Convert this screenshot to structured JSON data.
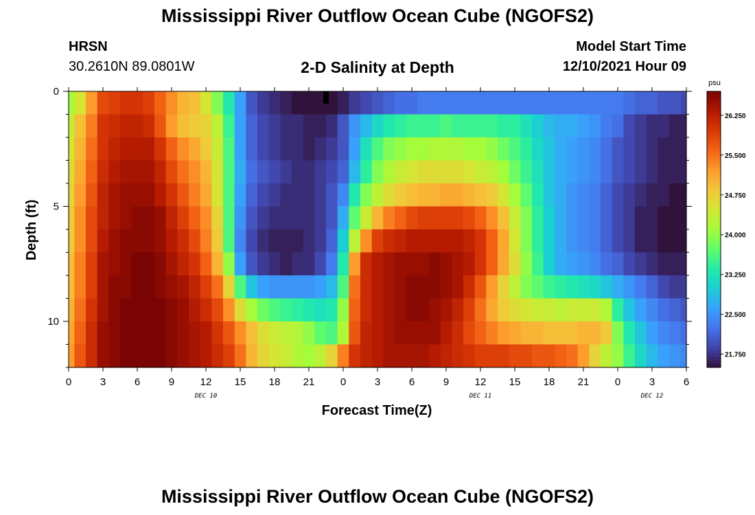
{
  "header": {
    "title": "Mississippi River Outflow Ocean Cube (NGOFS2)",
    "station_name": "HRSN",
    "station_coords": "30.2610N  89.0801W",
    "subtitle": "2-D Salinity at Depth",
    "model_start_label": "Model Start Time",
    "model_start_value": "12/10/2021 Hour 09"
  },
  "footer": {
    "title": "Mississippi River Outflow Ocean Cube (NGOFS2)"
  },
  "colors": {
    "scale": [
      "#30123b",
      "#4145ab",
      "#4675ed",
      "#39a2fc",
      "#1bcfd4",
      "#24eca6",
      "#61fc6c",
      "#a4fc3b",
      "#d1e834",
      "#f3c63a",
      "#fe9b2d",
      "#f36315",
      "#d93806",
      "#b11901",
      "#7a0403"
    ]
  },
  "chart_data": {
    "type": "heatmap",
    "title": "2-D Salinity at Depth",
    "xlabel": "Forecast Time(Z)",
    "ylabel": "Depth (ft)",
    "x_hours": [
      0,
      1,
      2,
      3,
      4,
      5,
      6,
      7,
      8,
      9,
      10,
      11,
      12,
      13,
      14,
      15,
      16,
      17,
      18,
      19,
      20,
      21,
      22,
      23,
      24,
      25,
      26,
      27,
      28,
      29,
      30,
      31,
      32,
      33,
      34,
      35,
      36,
      37,
      38,
      39,
      40,
      41,
      42,
      43,
      44,
      45,
      46,
      47,
      48,
      49,
      50,
      51,
      52,
      53,
      54
    ],
    "xlim": [
      0,
      54
    ],
    "ylim": [
      0,
      12
    ],
    "x_tick_labels": [
      "0",
      "3",
      "6",
      "9",
      "12",
      "15",
      "18",
      "21",
      "0",
      "3",
      "6",
      "9",
      "12",
      "15",
      "18",
      "21",
      "0",
      "3",
      "6"
    ],
    "y_tick_labels": [
      "0",
      "5",
      "10"
    ],
    "y_tick_values": [
      0,
      5,
      10
    ],
    "day_labels": [
      {
        "text": "DEC 10",
        "hour": 12
      },
      {
        "text": "DEC 11",
        "hour": 36
      },
      {
        "text": "DEC 12",
        "hour": 51
      }
    ],
    "now_marker_hour": 22.5,
    "layers": 12,
    "colorbar": {
      "unit": "psu",
      "min": 21.5,
      "max": 26.7,
      "labels": [
        "26.250",
        "25.500",
        "24.750",
        "24.000",
        "23.250",
        "22.500",
        "21.750"
      ],
      "label_values": [
        26.25,
        25.5,
        24.75,
        24.0,
        23.25,
        22.5,
        21.75
      ]
    },
    "salinity_psu": [
      [
        24.1,
        24.5,
        25.2,
        25.8,
        25.9,
        26.0,
        26.0,
        25.9,
        25.6,
        25.3,
        25.0,
        24.9,
        24.5,
        23.9,
        23.3,
        22.6,
        22.0,
        21.8,
        21.7,
        21.6,
        21.5,
        21.5,
        21.5,
        21.5,
        21.6,
        21.8,
        21.9,
        22.0,
        22.1,
        22.2,
        22.2,
        22.3,
        22.3,
        22.3,
        22.3,
        22.3,
        22.3,
        22.3,
        22.3,
        22.3,
        22.3,
        22.3,
        22.3,
        22.3,
        22.3,
        22.3,
        22.3,
        22.3,
        22.3,
        22.2,
        22.1,
        22.1,
        22.0,
        22.0,
        21.9
      ],
      [
        24.4,
        24.9,
        25.4,
        26.0,
        26.1,
        26.2,
        26.2,
        26.1,
        25.7,
        25.2,
        24.9,
        24.8,
        24.7,
        24.3,
        23.5,
        22.6,
        22.1,
        21.9,
        21.8,
        21.7,
        21.7,
        21.6,
        21.6,
        21.7,
        22.0,
        22.5,
        22.8,
        23.1,
        23.3,
        23.4,
        23.5,
        23.5,
        23.5,
        23.6,
        23.5,
        23.5,
        23.5,
        23.5,
        23.4,
        23.4,
        23.2,
        23.0,
        22.8,
        22.7,
        22.7,
        22.6,
        22.5,
        22.3,
        22.2,
        21.9,
        21.8,
        21.7,
        21.7,
        21.6,
        21.6
      ],
      [
        24.5,
        25.0,
        25.5,
        26.0,
        26.2,
        26.3,
        26.3,
        26.3,
        26.0,
        25.6,
        25.3,
        25.1,
        24.8,
        24.4,
        23.6,
        22.6,
        22.1,
        21.9,
        21.8,
        21.7,
        21.7,
        21.6,
        21.7,
        21.8,
        22.0,
        22.6,
        23.2,
        23.6,
        23.9,
        24.0,
        24.1,
        24.1,
        24.2,
        24.2,
        24.2,
        24.1,
        24.1,
        24.0,
        23.8,
        23.6,
        23.4,
        23.1,
        22.9,
        22.7,
        22.6,
        22.5,
        22.4,
        22.2,
        22.0,
        21.9,
        21.8,
        21.7,
        21.6,
        21.6,
        21.6
      ],
      [
        24.6,
        25.1,
        25.6,
        26.1,
        26.3,
        26.4,
        26.4,
        26.4,
        26.2,
        25.8,
        25.5,
        25.3,
        25.0,
        24.5,
        23.6,
        22.7,
        22.2,
        22.0,
        21.9,
        21.8,
        21.7,
        21.7,
        21.8,
        21.9,
        22.1,
        22.8,
        23.4,
        23.9,
        24.2,
        24.4,
        24.5,
        24.6,
        24.6,
        24.6,
        24.6,
        24.5,
        24.4,
        24.3,
        24.1,
        23.8,
        23.5,
        23.2,
        22.9,
        22.7,
        22.6,
        22.5,
        22.4,
        22.2,
        22.0,
        21.9,
        21.8,
        21.7,
        21.6,
        21.6,
        21.6
      ],
      [
        24.7,
        25.2,
        25.7,
        26.2,
        26.4,
        26.5,
        26.5,
        26.5,
        26.3,
        26.0,
        25.7,
        25.4,
        25.1,
        24.5,
        23.6,
        22.6,
        22.1,
        21.9,
        21.8,
        21.7,
        21.7,
        21.7,
        21.8,
        22.0,
        22.4,
        23.3,
        23.9,
        24.3,
        24.6,
        24.8,
        24.9,
        25.0,
        25.0,
        25.1,
        25.1,
        25.0,
        24.9,
        24.8,
        24.5,
        24.1,
        23.7,
        23.3,
        22.9,
        22.7,
        22.5,
        22.4,
        22.3,
        22.1,
        21.9,
        21.8,
        21.7,
        21.6,
        21.6,
        21.5,
        21.5
      ],
      [
        24.8,
        25.3,
        25.8,
        26.2,
        26.4,
        26.5,
        26.6,
        26.6,
        26.5,
        26.2,
        25.9,
        25.6,
        25.3,
        24.7,
        23.6,
        22.5,
        22.0,
        21.8,
        21.7,
        21.7,
        21.7,
        21.7,
        21.8,
        22.0,
        22.7,
        23.7,
        24.4,
        25.0,
        25.4,
        25.6,
        25.8,
        25.9,
        25.9,
        25.9,
        25.9,
        25.8,
        25.6,
        25.3,
        24.9,
        24.4,
        23.9,
        23.4,
        23.0,
        22.7,
        22.5,
        22.4,
        22.3,
        22.1,
        21.9,
        21.8,
        21.6,
        21.6,
        21.5,
        21.5,
        21.5
      ],
      [
        24.8,
        25.3,
        25.8,
        26.3,
        26.5,
        26.6,
        26.6,
        26.6,
        26.5,
        26.3,
        26.1,
        25.8,
        25.4,
        24.8,
        23.6,
        22.4,
        21.9,
        21.7,
        21.6,
        21.6,
        21.6,
        21.7,
        21.8,
        22.1,
        23.0,
        24.3,
        25.3,
        25.9,
        26.1,
        26.2,
        26.3,
        26.3,
        26.3,
        26.3,
        26.3,
        26.2,
        26.0,
        25.6,
        25.1,
        24.5,
        23.9,
        23.4,
        23.0,
        22.7,
        22.5,
        22.4,
        22.3,
        22.1,
        21.9,
        21.8,
        21.6,
        21.6,
        21.5,
        21.5,
        21.5
      ],
      [
        24.9,
        25.4,
        25.9,
        26.4,
        26.5,
        26.6,
        26.7,
        26.7,
        26.6,
        26.4,
        26.2,
        26.0,
        25.6,
        25.0,
        24.0,
        22.6,
        22.0,
        21.8,
        21.7,
        21.6,
        21.7,
        21.7,
        21.9,
        22.3,
        23.3,
        25.2,
        26.1,
        26.3,
        26.4,
        26.5,
        26.5,
        26.5,
        26.6,
        26.5,
        26.4,
        26.3,
        26.0,
        25.6,
        25.1,
        24.6,
        24.0,
        23.5,
        23.0,
        22.7,
        22.6,
        22.5,
        22.4,
        22.2,
        22.1,
        21.9,
        21.8,
        21.7,
        21.6,
        21.6,
        21.6
      ],
      [
        24.9,
        25.4,
        25.9,
        26.4,
        26.6,
        26.6,
        26.7,
        26.7,
        26.6,
        26.5,
        26.4,
        26.2,
        25.9,
        25.5,
        24.7,
        23.6,
        22.9,
        22.6,
        22.5,
        22.5,
        22.5,
        22.5,
        22.6,
        22.8,
        23.6,
        25.5,
        26.1,
        26.3,
        26.4,
        26.5,
        26.6,
        26.6,
        26.6,
        26.5,
        26.4,
        26.1,
        25.7,
        25.2,
        24.7,
        24.3,
        23.9,
        23.7,
        23.5,
        23.4,
        23.3,
        23.2,
        23.1,
        22.9,
        22.7,
        22.5,
        22.3,
        22.1,
        21.9,
        21.8,
        21.8
      ],
      [
        25.0,
        25.5,
        26.0,
        26.4,
        26.6,
        26.7,
        26.7,
        26.7,
        26.7,
        26.6,
        26.5,
        26.3,
        26.1,
        25.8,
        25.3,
        24.6,
        24.1,
        23.8,
        23.6,
        23.5,
        23.4,
        23.3,
        23.2,
        23.3,
        24.0,
        25.6,
        26.1,
        26.3,
        26.4,
        26.5,
        26.6,
        26.6,
        26.5,
        26.4,
        26.2,
        25.9,
        25.5,
        25.1,
        24.8,
        24.6,
        24.5,
        24.4,
        24.4,
        24.3,
        24.4,
        24.4,
        24.4,
        24.2,
        23.4,
        22.9,
        22.6,
        22.4,
        22.2,
        22.1,
        22.0
      ],
      [
        25.1,
        25.6,
        26.1,
        26.5,
        26.6,
        26.7,
        26.7,
        26.7,
        26.7,
        26.6,
        26.5,
        26.4,
        26.3,
        26.0,
        25.7,
        25.3,
        24.9,
        24.6,
        24.4,
        24.3,
        24.2,
        24.0,
        23.7,
        23.6,
        24.2,
        25.7,
        26.2,
        26.3,
        26.4,
        26.5,
        26.5,
        26.5,
        26.5,
        26.3,
        26.1,
        25.8,
        25.6,
        25.4,
        25.2,
        25.1,
        25.0,
        25.0,
        24.9,
        24.9,
        24.9,
        25.0,
        25.0,
        24.8,
        23.9,
        23.3,
        22.9,
        22.6,
        22.4,
        22.3,
        22.2
      ],
      [
        25.2,
        25.7,
        26.1,
        26.5,
        26.6,
        26.7,
        26.7,
        26.7,
        26.7,
        26.6,
        26.5,
        26.4,
        26.3,
        26.1,
        25.9,
        25.5,
        25.0,
        24.7,
        24.5,
        24.4,
        24.2,
        24.1,
        24.3,
        24.7,
        25.4,
        26.0,
        26.2,
        26.3,
        26.4,
        26.4,
        26.4,
        26.4,
        26.3,
        26.2,
        26.1,
        26.0,
        25.9,
        25.9,
        25.9,
        25.8,
        25.8,
        25.7,
        25.7,
        25.6,
        25.5,
        25.2,
        24.7,
        24.3,
        24.0,
        23.5,
        23.1,
        22.8,
        22.6,
        22.5,
        22.4
      ]
    ]
  }
}
